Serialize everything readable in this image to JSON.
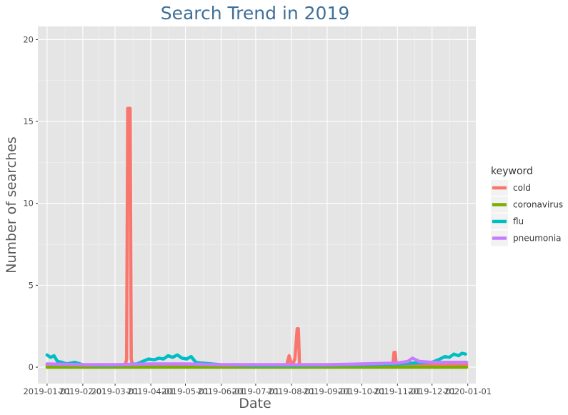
{
  "chart_data": {
    "type": "line",
    "title": "Search Trend in 2019",
    "xlabel": "Date",
    "ylabel": "Number of searches",
    "ylim": [
      -1,
      20.8
    ],
    "xlim": [
      "2018-12-24",
      "2020-01-08"
    ],
    "yticks": [
      0,
      5,
      10,
      15,
      20
    ],
    "xticks": [
      "2019-01-01",
      "2019-02-01",
      "2019-03-01",
      "2019-04-01",
      "2019-05-01",
      "2019-06-01",
      "2019-07-01",
      "2019-08-01",
      "2019-09-01",
      "2019-10-01",
      "2019-11-01",
      "2019-12-01",
      "2020-01-01"
    ],
    "xtick_labels": [
      "2019-01-01",
      "2019-02-01",
      "2019-03-01",
      "2019-04-01",
      "2019-05-01",
      "2019-06-01",
      "2019-07-01",
      "2019-08-01",
      "2019-09-01",
      "2019-10-01",
      "2019-11-01",
      "2019-12-01",
      "2020-01-01"
    ],
    "grid": true,
    "legend": {
      "title": "keyword",
      "position": "right"
    },
    "series": [
      {
        "name": "cold",
        "color": "#F8766D",
        "x": [
          "2019-01-01",
          "2019-03-01",
          "2019-03-10",
          "2019-03-11",
          "2019-03-12",
          "2019-03-13",
          "2019-03-14",
          "2019-03-15",
          "2019-03-16",
          "2019-03-20",
          "2019-05-01",
          "2019-07-01",
          "2019-07-28",
          "2019-07-30",
          "2019-08-01",
          "2019-08-02",
          "2019-08-04",
          "2019-08-06",
          "2019-08-07",
          "2019-08-08",
          "2019-09-01",
          "2019-10-01",
          "2019-10-28",
          "2019-10-29",
          "2019-10-30",
          "2019-10-31",
          "2019-11-01",
          "2019-12-01",
          "2019-12-31"
        ],
        "y": [
          0.15,
          0.15,
          0.15,
          0.5,
          15.8,
          15.8,
          15.8,
          0.5,
          0.15,
          0.15,
          0.15,
          0.15,
          0.15,
          0.7,
          0.15,
          0.15,
          0.5,
          2.35,
          2.35,
          0.15,
          0.15,
          0.15,
          0.15,
          0.9,
          0.9,
          0.15,
          0.15,
          0.15,
          0.15
        ]
      },
      {
        "name": "coronavirus",
        "color": "#7CAE00",
        "x": [
          "2019-01-01",
          "2019-12-31"
        ],
        "y": [
          0.0,
          0.0
        ]
      },
      {
        "name": "flu",
        "color": "#00BFC4",
        "x": [
          "2019-01-01",
          "2019-01-04",
          "2019-01-07",
          "2019-01-10",
          "2019-01-14",
          "2019-01-18",
          "2019-01-25",
          "2019-02-01",
          "2019-02-15",
          "2019-03-01",
          "2019-03-20",
          "2019-03-25",
          "2019-03-30",
          "2019-04-04",
          "2019-04-08",
          "2019-04-12",
          "2019-04-16",
          "2019-04-20",
          "2019-04-24",
          "2019-04-28",
          "2019-05-02",
          "2019-05-06",
          "2019-05-10",
          "2019-05-15",
          "2019-06-01",
          "2019-07-01",
          "2019-08-01",
          "2019-09-01",
          "2019-10-01",
          "2019-11-01",
          "2019-11-15",
          "2019-12-01",
          "2019-12-08",
          "2019-12-12",
          "2019-12-16",
          "2019-12-20",
          "2019-12-24",
          "2019-12-27",
          "2019-12-30"
        ],
        "y": [
          0.75,
          0.6,
          0.7,
          0.35,
          0.3,
          0.2,
          0.3,
          0.15,
          0.12,
          0.12,
          0.2,
          0.35,
          0.5,
          0.45,
          0.55,
          0.5,
          0.7,
          0.6,
          0.75,
          0.55,
          0.5,
          0.65,
          0.3,
          0.25,
          0.15,
          0.1,
          0.1,
          0.12,
          0.15,
          0.2,
          0.25,
          0.3,
          0.5,
          0.65,
          0.6,
          0.8,
          0.7,
          0.85,
          0.8
        ]
      },
      {
        "name": "pneumonia",
        "color": "#C77CFF",
        "x": [
          "2019-01-01",
          "2019-02-01",
          "2019-03-01",
          "2019-04-01",
          "2019-05-01",
          "2019-06-01",
          "2019-07-01",
          "2019-08-01",
          "2019-09-01",
          "2019-10-01",
          "2019-11-01",
          "2019-11-10",
          "2019-11-14",
          "2019-11-20",
          "2019-12-01",
          "2019-12-31"
        ],
        "y": [
          0.2,
          0.15,
          0.15,
          0.2,
          0.2,
          0.15,
          0.15,
          0.15,
          0.15,
          0.2,
          0.25,
          0.35,
          0.55,
          0.35,
          0.3,
          0.3
        ]
      }
    ]
  }
}
